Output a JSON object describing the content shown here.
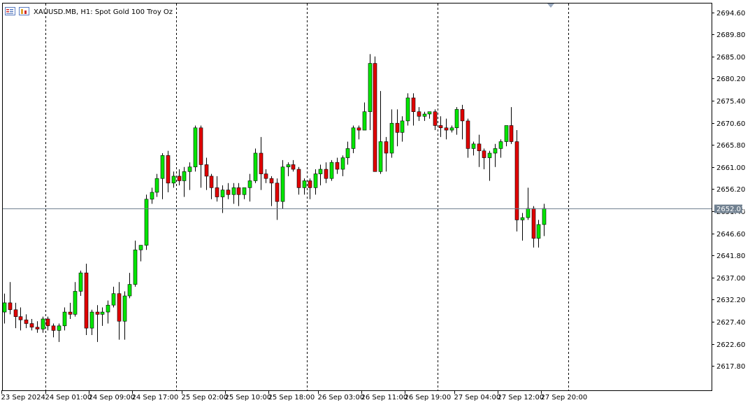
{
  "window": {
    "title": "XAUUSD.MB, H1:  Spot Gold 100 Troy Oz",
    "icon_name": "chart-window-icon",
    "symbol_icon_name": "symbol-properties-icon"
  },
  "colors": {
    "bull": "#00e600",
    "bear": "#e00000",
    "wick": "#000000",
    "grid": "#000000",
    "price_line": "#708090",
    "price_label_bg": "#708090",
    "price_label_text": "#ffffff",
    "axis": "#000000",
    "background": "#ffffff"
  },
  "current_price": {
    "value": 2652.01,
    "label": "2652.01"
  },
  "chart_data": {
    "type": "candlestick",
    "title": "XAUUSD.MB, H1:  Spot Gold 100 Troy Oz",
    "ylim": [
      2612.5,
      2696.5
    ],
    "ylabel": "",
    "xlabel": "",
    "grid": "vertical-dashed",
    "y_ticks": [
      "2694.60",
      "2689.80",
      "2685.00",
      "2680.20",
      "2675.40",
      "2670.60",
      "2665.80",
      "2661.00",
      "2656.20",
      "2651.40",
      "2646.60",
      "2641.80",
      "2637.00",
      "2632.20",
      "2627.40",
      "2622.60",
      "2617.80"
    ],
    "x_labels": [
      {
        "index": 0,
        "label": "23 Sep 2024"
      },
      {
        "index": 8,
        "label": "24 Sep 01:00"
      },
      {
        "index": 16,
        "label": "24 Sep 09:00"
      },
      {
        "index": 24,
        "label": "24 Sep 17:00"
      },
      {
        "index": 33,
        "label": "25 Sep 02:00"
      },
      {
        "index": 41,
        "label": "25 Sep 10:00"
      },
      {
        "index": 49,
        "label": "25 Sep 18:00"
      },
      {
        "index": 58,
        "label": "26 Sep 03:00"
      },
      {
        "index": 66,
        "label": "26 Sep 11:00"
      },
      {
        "index": 74,
        "label": "26 Sep 19:00"
      },
      {
        "index": 83,
        "label": "27 Sep 04:00"
      },
      {
        "index": 91,
        "label": "27 Sep 12:00"
      },
      {
        "index": 99,
        "label": "27 Sep 20:00"
      }
    ],
    "period_separators": [
      8,
      32,
      56,
      80,
      104
    ],
    "candles": [
      {
        "o": 2629.5,
        "h": 2633.5,
        "l": 2627.0,
        "c": 2631.5
      },
      {
        "o": 2631.5,
        "h": 2636.0,
        "l": 2629.0,
        "c": 2630.0
      },
      {
        "o": 2630.0,
        "h": 2631.5,
        "l": 2626.0,
        "c": 2628.5
      },
      {
        "o": 2628.5,
        "h": 2630.5,
        "l": 2625.5,
        "c": 2627.8
      },
      {
        "o": 2627.8,
        "h": 2629.0,
        "l": 2626.0,
        "c": 2627.0
      },
      {
        "o": 2627.0,
        "h": 2628.0,
        "l": 2625.5,
        "c": 2626.2
      },
      {
        "o": 2626.2,
        "h": 2627.5,
        "l": 2625.0,
        "c": 2625.8
      },
      {
        "o": 2625.8,
        "h": 2628.5,
        "l": 2625.0,
        "c": 2628.0
      },
      {
        "o": 2628.0,
        "h": 2628.5,
        "l": 2625.5,
        "c": 2626.5
      },
      {
        "o": 2626.5,
        "h": 2627.0,
        "l": 2624.0,
        "c": 2625.5
      },
      {
        "o": 2625.5,
        "h": 2627.0,
        "l": 2623.0,
        "c": 2626.5
      },
      {
        "o": 2626.5,
        "h": 2630.5,
        "l": 2625.5,
        "c": 2629.5
      },
      {
        "o": 2629.5,
        "h": 2631.5,
        "l": 2628.0,
        "c": 2629.0
      },
      {
        "o": 2629.0,
        "h": 2636.0,
        "l": 2628.5,
        "c": 2634.0
      },
      {
        "o": 2634.0,
        "h": 2638.5,
        "l": 2633.0,
        "c": 2638.0
      },
      {
        "o": 2638.0,
        "h": 2640.0,
        "l": 2624.5,
        "c": 2626.0
      },
      {
        "o": 2626.0,
        "h": 2630.0,
        "l": 2624.5,
        "c": 2629.5
      },
      {
        "o": 2629.5,
        "h": 2631.0,
        "l": 2623.0,
        "c": 2629.0
      },
      {
        "o": 2629.0,
        "h": 2630.5,
        "l": 2626.5,
        "c": 2629.5
      },
      {
        "o": 2629.5,
        "h": 2632.0,
        "l": 2627.0,
        "c": 2631.0
      },
      {
        "o": 2631.0,
        "h": 2635.0,
        "l": 2630.5,
        "c": 2633.5
      },
      {
        "o": 2633.5,
        "h": 2636.0,
        "l": 2623.5,
        "c": 2627.5
      },
      {
        "o": 2627.5,
        "h": 2634.0,
        "l": 2623.5,
        "c": 2633.0
      },
      {
        "o": 2633.0,
        "h": 2638.0,
        "l": 2632.5,
        "c": 2635.5
      },
      {
        "o": 2635.5,
        "h": 2645.0,
        "l": 2635.0,
        "c": 2643.0
      },
      {
        "o": 2643.0,
        "h": 2644.0,
        "l": 2640.5,
        "c": 2644.0
      },
      {
        "o": 2644.0,
        "h": 2655.0,
        "l": 2643.0,
        "c": 2654.0
      },
      {
        "o": 2654.0,
        "h": 2656.5,
        "l": 2653.0,
        "c": 2655.5
      },
      {
        "o": 2655.5,
        "h": 2659.5,
        "l": 2654.5,
        "c": 2658.5
      },
      {
        "o": 2658.5,
        "h": 2664.0,
        "l": 2654.0,
        "c": 2663.5
      },
      {
        "o": 2663.5,
        "h": 2664.5,
        "l": 2655.5,
        "c": 2657.5
      },
      {
        "o": 2657.5,
        "h": 2660.0,
        "l": 2656.5,
        "c": 2659.0
      },
      {
        "o": 2659.0,
        "h": 2660.5,
        "l": 2657.0,
        "c": 2658.0
      },
      {
        "o": 2658.0,
        "h": 2661.0,
        "l": 2654.5,
        "c": 2660.0
      },
      {
        "o": 2660.0,
        "h": 2662.0,
        "l": 2656.0,
        "c": 2661.0
      },
      {
        "o": 2661.0,
        "h": 2670.0,
        "l": 2660.0,
        "c": 2669.5
      },
      {
        "o": 2669.5,
        "h": 2670.0,
        "l": 2656.5,
        "c": 2661.5
      },
      {
        "o": 2661.5,
        "h": 2663.0,
        "l": 2656.0,
        "c": 2659.0
      },
      {
        "o": 2659.0,
        "h": 2659.5,
        "l": 2654.0,
        "c": 2656.5
      },
      {
        "o": 2656.5,
        "h": 2659.0,
        "l": 2653.5,
        "c": 2654.5
      },
      {
        "o": 2654.5,
        "h": 2657.0,
        "l": 2651.0,
        "c": 2656.0
      },
      {
        "o": 2656.0,
        "h": 2657.5,
        "l": 2654.0,
        "c": 2655.0
      },
      {
        "o": 2655.0,
        "h": 2657.5,
        "l": 2653.0,
        "c": 2656.5
      },
      {
        "o": 2656.5,
        "h": 2657.5,
        "l": 2652.5,
        "c": 2655.0
      },
      {
        "o": 2655.0,
        "h": 2656.5,
        "l": 2654.0,
        "c": 2656.5
      },
      {
        "o": 2656.5,
        "h": 2659.5,
        "l": 2653.5,
        "c": 2658.0
      },
      {
        "o": 2658.0,
        "h": 2665.0,
        "l": 2657.5,
        "c": 2664.0
      },
      {
        "o": 2664.0,
        "h": 2667.5,
        "l": 2656.0,
        "c": 2659.5
      },
      {
        "o": 2659.5,
        "h": 2660.5,
        "l": 2657.5,
        "c": 2658.5
      },
      {
        "o": 2658.5,
        "h": 2659.0,
        "l": 2652.5,
        "c": 2657.5
      },
      {
        "o": 2657.5,
        "h": 2658.5,
        "l": 2649.5,
        "c": 2653.5
      },
      {
        "o": 2653.5,
        "h": 2662.5,
        "l": 2652.0,
        "c": 2661.0
      },
      {
        "o": 2661.0,
        "h": 2662.0,
        "l": 2659.0,
        "c": 2661.5
      },
      {
        "o": 2661.5,
        "h": 2662.5,
        "l": 2660.0,
        "c": 2660.5
      },
      {
        "o": 2660.5,
        "h": 2661.0,
        "l": 2655.0,
        "c": 2656.5
      },
      {
        "o": 2656.5,
        "h": 2658.5,
        "l": 2655.0,
        "c": 2658.0
      },
      {
        "o": 2658.0,
        "h": 2658.5,
        "l": 2654.0,
        "c": 2656.5
      },
      {
        "o": 2656.5,
        "h": 2660.5,
        "l": 2655.0,
        "c": 2659.5
      },
      {
        "o": 2659.5,
        "h": 2661.5,
        "l": 2657.0,
        "c": 2660.5
      },
      {
        "o": 2660.5,
        "h": 2662.0,
        "l": 2657.5,
        "c": 2658.5
      },
      {
        "o": 2658.5,
        "h": 2662.5,
        "l": 2658.0,
        "c": 2662.0
      },
      {
        "o": 2662.0,
        "h": 2663.0,
        "l": 2659.5,
        "c": 2660.5
      },
      {
        "o": 2660.5,
        "h": 2663.5,
        "l": 2659.0,
        "c": 2663.0
      },
      {
        "o": 2663.0,
        "h": 2666.5,
        "l": 2661.5,
        "c": 2665.0
      },
      {
        "o": 2665.0,
        "h": 2670.0,
        "l": 2664.0,
        "c": 2669.5
      },
      {
        "o": 2669.5,
        "h": 2670.0,
        "l": 2667.0,
        "c": 2669.0
      },
      {
        "o": 2669.0,
        "h": 2675.0,
        "l": 2669.0,
        "c": 2673.0
      },
      {
        "o": 2673.0,
        "h": 2685.5,
        "l": 2669.0,
        "c": 2683.5
      },
      {
        "o": 2683.5,
        "h": 2685.0,
        "l": 2660.0,
        "c": 2660.0
      },
      {
        "o": 2660.0,
        "h": 2677.5,
        "l": 2659.5,
        "c": 2666.5
      },
      {
        "o": 2666.5,
        "h": 2667.5,
        "l": 2660.0,
        "c": 2664.0
      },
      {
        "o": 2664.0,
        "h": 2673.5,
        "l": 2663.0,
        "c": 2670.5
      },
      {
        "o": 2670.5,
        "h": 2673.5,
        "l": 2665.5,
        "c": 2668.5
      },
      {
        "o": 2668.5,
        "h": 2672.0,
        "l": 2666.5,
        "c": 2671.0
      },
      {
        "o": 2671.0,
        "h": 2677.0,
        "l": 2670.0,
        "c": 2676.0
      },
      {
        "o": 2676.0,
        "h": 2677.0,
        "l": 2670.0,
        "c": 2673.0
      },
      {
        "o": 2673.0,
        "h": 2674.0,
        "l": 2671.0,
        "c": 2672.0
      },
      {
        "o": 2672.0,
        "h": 2673.0,
        "l": 2671.0,
        "c": 2672.5
      },
      {
        "o": 2672.5,
        "h": 2673.0,
        "l": 2671.5,
        "c": 2673.0
      },
      {
        "o": 2673.0,
        "h": 2673.5,
        "l": 2669.0,
        "c": 2670.0
      },
      {
        "o": 2670.0,
        "h": 2672.0,
        "l": 2667.5,
        "c": 2669.5
      },
      {
        "o": 2669.5,
        "h": 2671.5,
        "l": 2667.0,
        "c": 2669.0
      },
      {
        "o": 2669.0,
        "h": 2670.0,
        "l": 2668.5,
        "c": 2669.5
      },
      {
        "o": 2669.5,
        "h": 2674.0,
        "l": 2668.0,
        "c": 2673.5
      },
      {
        "o": 2673.5,
        "h": 2674.5,
        "l": 2667.0,
        "c": 2671.0
      },
      {
        "o": 2671.0,
        "h": 2671.5,
        "l": 2663.0,
        "c": 2665.0
      },
      {
        "o": 2665.0,
        "h": 2666.5,
        "l": 2663.5,
        "c": 2666.0
      },
      {
        "o": 2666.0,
        "h": 2668.0,
        "l": 2661.0,
        "c": 2664.5
      },
      {
        "o": 2664.5,
        "h": 2665.0,
        "l": 2660.5,
        "c": 2663.0
      },
      {
        "o": 2663.0,
        "h": 2664.5,
        "l": 2658.0,
        "c": 2664.0
      },
      {
        "o": 2664.0,
        "h": 2666.0,
        "l": 2661.0,
        "c": 2665.0
      },
      {
        "o": 2665.0,
        "h": 2667.0,
        "l": 2663.0,
        "c": 2666.5
      },
      {
        "o": 2666.5,
        "h": 2670.0,
        "l": 2665.5,
        "c": 2670.0
      },
      {
        "o": 2670.0,
        "h": 2674.0,
        "l": 2666.0,
        "c": 2666.5
      },
      {
        "o": 2666.5,
        "h": 2669.0,
        "l": 2647.0,
        "c": 2649.5
      },
      {
        "o": 2649.5,
        "h": 2651.0,
        "l": 2645.0,
        "c": 2650.0
      },
      {
        "o": 2650.0,
        "h": 2656.5,
        "l": 2649.5,
        "c": 2652.0
      },
      {
        "o": 2652.0,
        "h": 2652.5,
        "l": 2643.5,
        "c": 2645.5
      },
      {
        "o": 2645.5,
        "h": 2649.5,
        "l": 2643.5,
        "c": 2648.5
      },
      {
        "o": 2648.5,
        "h": 2653.0,
        "l": 2646.0,
        "c": 2652.0
      }
    ]
  }
}
